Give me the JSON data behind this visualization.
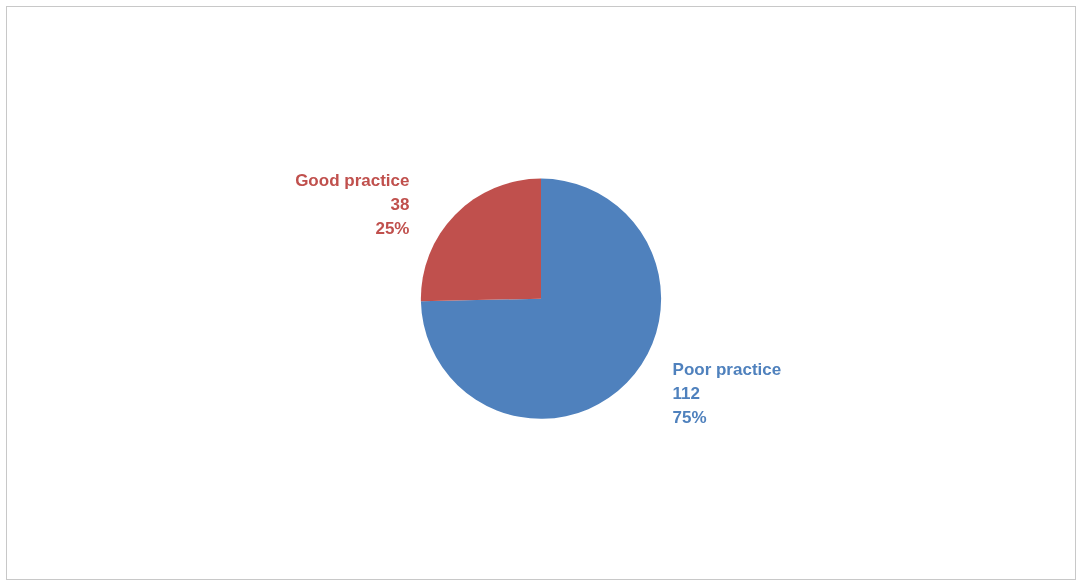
{
  "chart_data": {
    "type": "pie",
    "categories": [
      "Poor practice",
      "Good practice"
    ],
    "values": [
      112,
      38
    ],
    "colors": [
      "#4f81bd",
      "#c0504d"
    ],
    "value_labels": [
      "112\n75%",
      "38\n25%"
    ],
    "legend": false
  }
}
